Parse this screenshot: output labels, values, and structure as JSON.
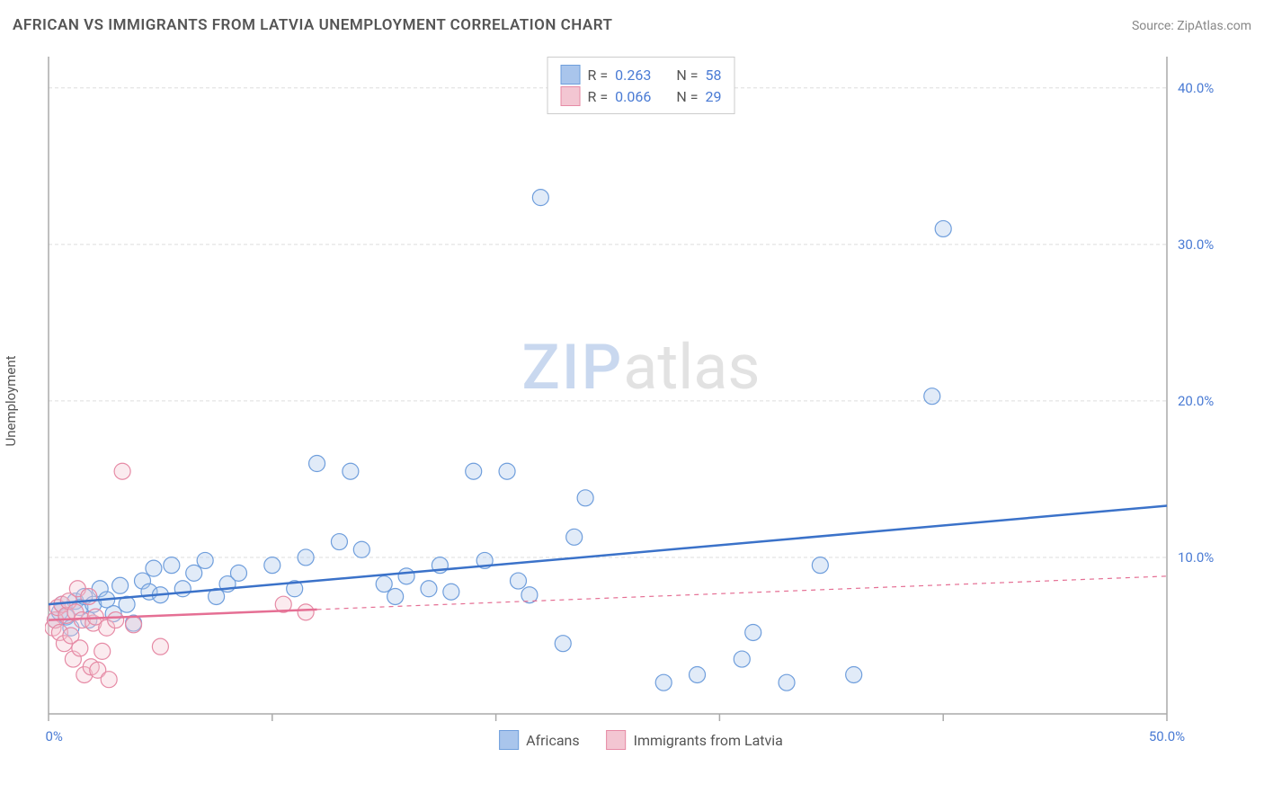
{
  "title": "AFRICAN VS IMMIGRANTS FROM LATVIA UNEMPLOYMENT CORRELATION CHART",
  "source": "Source: ZipAtlas.com",
  "y_axis_label": "Unemployment",
  "watermark": {
    "part1": "ZIP",
    "part2": "atlas"
  },
  "chart": {
    "type": "scatter",
    "xlim": [
      0,
      50
    ],
    "ylim": [
      0,
      42
    ],
    "x_ticks": [
      0,
      10,
      20,
      30,
      40,
      50
    ],
    "x_tick_labels": [
      "0.0%",
      "",
      "",
      "",
      "",
      "50.0%"
    ],
    "y_ticks": [
      10,
      20,
      30,
      40
    ],
    "y_tick_labels": [
      "10.0%",
      "20.0%",
      "30.0%",
      "40.0%"
    ],
    "grid_color": "#dddddd",
    "axis_color": "#aaaaaa",
    "background_color": "#ffffff",
    "marker_radius": 9,
    "marker_stroke_width": 1.2,
    "marker_fill_opacity": 0.35,
    "trend_line_width": 2.5,
    "series": [
      {
        "name": "Africans",
        "color_fill": "#a9c5ec",
        "color_stroke": "#6f9edc",
        "line_color": "#3b72c9",
        "r_value": "0.263",
        "n_value": "58",
        "trend": {
          "x1": 0,
          "y1": 7.0,
          "x2": 50,
          "y2": 13.3,
          "dashed_after_x": null
        },
        "points": [
          [
            0.3,
            6.0
          ],
          [
            0.5,
            6.5
          ],
          [
            0.6,
            7.0
          ],
          [
            0.8,
            6.2
          ],
          [
            1.0,
            5.5
          ],
          [
            1.2,
            7.2
          ],
          [
            1.4,
            6.8
          ],
          [
            1.6,
            7.5
          ],
          [
            1.8,
            6.0
          ],
          [
            2.0,
            7.0
          ],
          [
            2.3,
            8.0
          ],
          [
            2.6,
            7.3
          ],
          [
            2.9,
            6.4
          ],
          [
            3.2,
            8.2
          ],
          [
            3.5,
            7.0
          ],
          [
            3.8,
            5.8
          ],
          [
            4.2,
            8.5
          ],
          [
            4.5,
            7.8
          ],
          [
            4.7,
            9.3
          ],
          [
            5.0,
            7.6
          ],
          [
            5.5,
            9.5
          ],
          [
            6.0,
            8.0
          ],
          [
            6.5,
            9.0
          ],
          [
            7.0,
            9.8
          ],
          [
            7.5,
            7.5
          ],
          [
            8.0,
            8.3
          ],
          [
            8.5,
            9.0
          ],
          [
            10.0,
            9.5
          ],
          [
            11.0,
            8.0
          ],
          [
            11.5,
            10.0
          ],
          [
            12.0,
            16.0
          ],
          [
            13.0,
            11.0
          ],
          [
            13.5,
            15.5
          ],
          [
            14.0,
            10.5
          ],
          [
            15.0,
            8.3
          ],
          [
            15.5,
            7.5
          ],
          [
            16.0,
            8.8
          ],
          [
            17.0,
            8.0
          ],
          [
            17.5,
            9.5
          ],
          [
            18.0,
            7.8
          ],
          [
            19.0,
            15.5
          ],
          [
            19.5,
            9.8
          ],
          [
            20.5,
            15.5
          ],
          [
            21.0,
            8.5
          ],
          [
            21.5,
            7.6
          ],
          [
            22.0,
            33.0
          ],
          [
            23.0,
            4.5
          ],
          [
            23.5,
            11.3
          ],
          [
            24.0,
            13.8
          ],
          [
            27.5,
            2.0
          ],
          [
            29.0,
            2.5
          ],
          [
            31.0,
            3.5
          ],
          [
            31.5,
            5.2
          ],
          [
            33.0,
            2.0
          ],
          [
            34.5,
            9.5
          ],
          [
            36.0,
            2.5
          ],
          [
            39.5,
            20.3
          ],
          [
            40.0,
            31.0
          ]
        ]
      },
      {
        "name": "Immigrants from Latvia",
        "color_fill": "#f3c6d2",
        "color_stroke": "#e68aa5",
        "line_color": "#e56f94",
        "r_value": "0.066",
        "n_value": "29",
        "trend": {
          "x1": 0,
          "y1": 6.0,
          "x2": 50,
          "y2": 8.8,
          "dashed_after_x": 12
        },
        "points": [
          [
            0.2,
            5.5
          ],
          [
            0.3,
            6.0
          ],
          [
            0.4,
            6.8
          ],
          [
            0.5,
            5.2
          ],
          [
            0.6,
            7.0
          ],
          [
            0.7,
            4.5
          ],
          [
            0.8,
            6.3
          ],
          [
            0.9,
            7.2
          ],
          [
            1.0,
            5.0
          ],
          [
            1.1,
            3.5
          ],
          [
            1.2,
            6.5
          ],
          [
            1.3,
            8.0
          ],
          [
            1.4,
            4.2
          ],
          [
            1.5,
            6.0
          ],
          [
            1.6,
            2.5
          ],
          [
            1.8,
            7.5
          ],
          [
            1.9,
            3.0
          ],
          [
            2.0,
            5.8
          ],
          [
            2.1,
            6.2
          ],
          [
            2.2,
            2.8
          ],
          [
            2.4,
            4.0
          ],
          [
            2.6,
            5.5
          ],
          [
            2.7,
            2.2
          ],
          [
            3.0,
            6.0
          ],
          [
            3.3,
            15.5
          ],
          [
            3.8,
            5.7
          ],
          [
            5.0,
            4.3
          ],
          [
            10.5,
            7.0
          ],
          [
            11.5,
            6.5
          ]
        ]
      }
    ]
  },
  "stats_box": {
    "r_label": "R  =",
    "n_label": "N  ="
  },
  "legend": {
    "africans": "Africans",
    "latvia": "Immigrants from Latvia"
  }
}
